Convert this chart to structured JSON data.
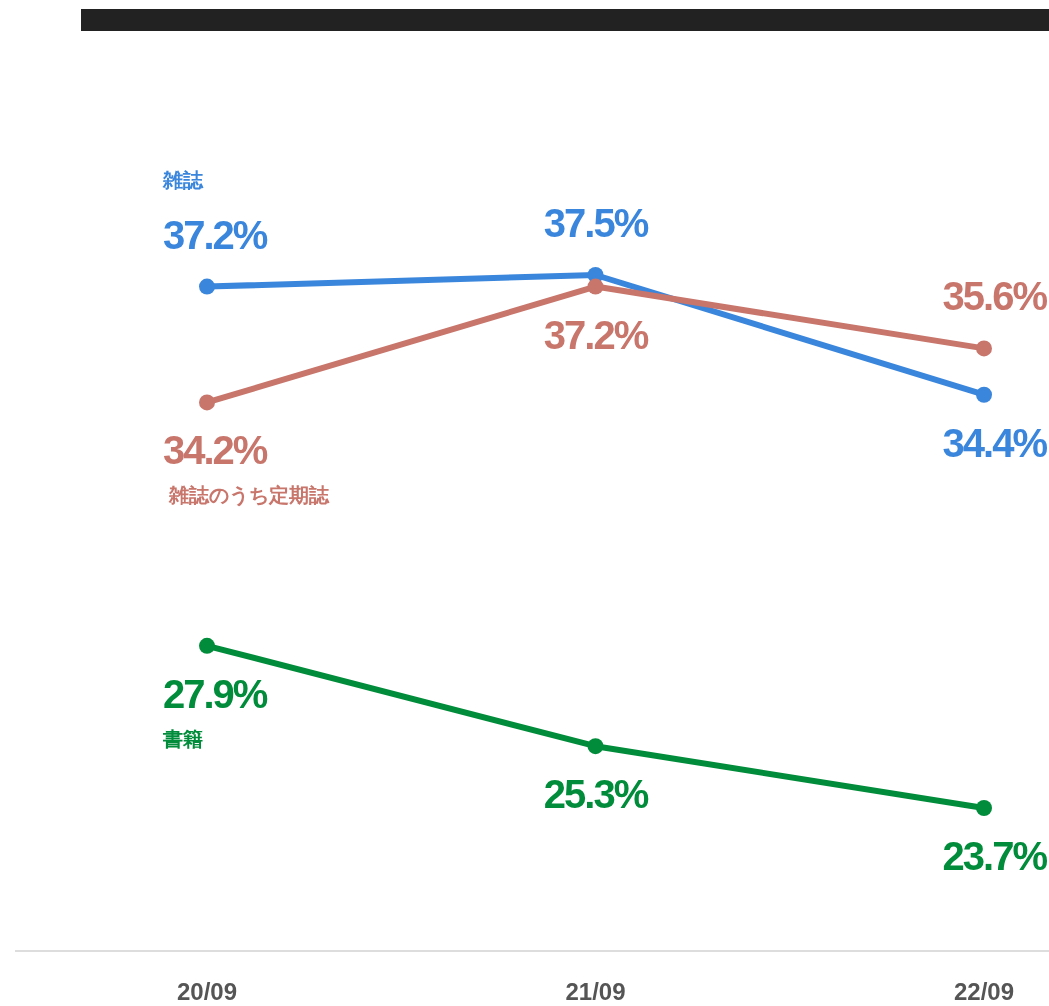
{
  "chart_data": {
    "type": "line",
    "categories": [
      "20/09",
      "21/09",
      "22/09"
    ],
    "marker": "circle",
    "line_style": "solid",
    "series": [
      {
        "name": "雑誌",
        "color": "#3a86dc",
        "values": [
          37.2,
          37.5,
          34.4
        ],
        "value_labels": [
          "37.2%",
          "37.5%",
          "34.4%"
        ]
      },
      {
        "name": "雑誌のうち定期誌",
        "color": "#c8756b",
        "values": [
          34.2,
          37.2,
          35.6
        ],
        "value_labels": [
          "34.2%",
          "37.2%",
          "35.6%"
        ]
      },
      {
        "name": "書籍",
        "color": "#008c3a",
        "values": [
          27.9,
          25.3,
          23.7
        ],
        "value_labels": [
          "27.9%",
          "25.3%",
          "23.7%"
        ]
      }
    ]
  }
}
